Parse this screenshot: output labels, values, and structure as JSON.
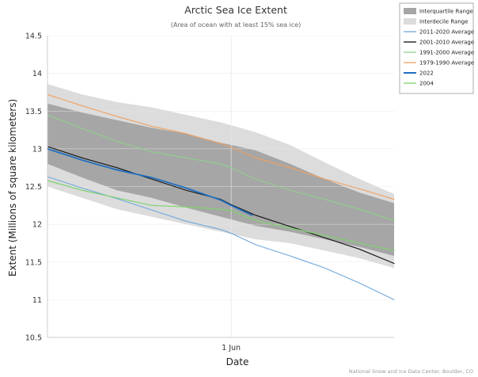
{
  "chart_data": {
    "type": "line",
    "title": "Arctic Sea Ice Extent",
    "subtitle": "(Area of ocean with at least 15% sea ice)",
    "xlabel": "Date",
    "ylabel": "Extent (Millions of square kilometers)",
    "credit": "National Snow and Ice Data Center, Boulder, CO",
    "ylim": [
      10.5,
      14.5
    ],
    "yticks": [
      "10.5",
      "11",
      "11.5",
      "12",
      "12.5",
      "13",
      "13.5",
      "14",
      "14.5"
    ],
    "x_tick_labels": [
      {
        "x": 0.53,
        "label": "1 Jun"
      }
    ],
    "grid": true,
    "legend_position": "top-right",
    "bands": [
      {
        "name": "Interdecile Range",
        "color": "#dcdcdc",
        "x": [
          0,
          0.1,
          0.2,
          0.3,
          0.4,
          0.5,
          0.6,
          0.7,
          0.8,
          0.9,
          1.0
        ],
        "lower": [
          12.5,
          12.35,
          12.2,
          12.1,
          12.0,
          11.9,
          11.8,
          11.75,
          11.65,
          11.55,
          11.42
        ],
        "upper": [
          13.86,
          13.72,
          13.62,
          13.55,
          13.45,
          13.35,
          13.22,
          13.05,
          12.82,
          12.6,
          12.4
        ]
      },
      {
        "name": "Interquartile Range",
        "color": "#a6a6a6",
        "x": [
          0,
          0.1,
          0.2,
          0.3,
          0.4,
          0.5,
          0.6,
          0.7,
          0.8,
          0.9,
          1.0
        ],
        "lower": [
          12.8,
          12.62,
          12.45,
          12.35,
          12.22,
          12.1,
          11.98,
          11.9,
          11.8,
          11.7,
          11.58
        ],
        "upper": [
          13.6,
          13.48,
          13.38,
          13.28,
          13.2,
          13.08,
          12.98,
          12.8,
          12.6,
          12.42,
          12.28
        ]
      }
    ],
    "series": [
      {
        "name": "2011-2020 Average",
        "color": "#6fa8dc",
        "width": 1.1,
        "x": [
          0,
          0.1,
          0.2,
          0.3,
          0.4,
          0.5,
          0.53,
          0.6,
          0.7,
          0.8,
          0.9,
          1.0
        ],
        "y": [
          12.63,
          12.48,
          12.34,
          12.19,
          12.04,
          11.93,
          11.88,
          11.73,
          11.58,
          11.42,
          11.22,
          11.0
        ]
      },
      {
        "name": "2001-2010 Average",
        "color": "#111111",
        "width": 1.1,
        "x": [
          0,
          0.1,
          0.2,
          0.3,
          0.4,
          0.5,
          0.53,
          0.6,
          0.7,
          0.8,
          0.9,
          1.0
        ],
        "y": [
          13.03,
          12.88,
          12.75,
          12.6,
          12.45,
          12.33,
          12.26,
          12.12,
          11.97,
          11.82,
          11.67,
          11.48
        ]
      },
      {
        "name": "1991-2000 Average",
        "color": "#8fd18a",
        "width": 1.1,
        "x": [
          0,
          0.1,
          0.2,
          0.3,
          0.4,
          0.5,
          0.53,
          0.6,
          0.7,
          0.8,
          0.9,
          1.0
        ],
        "y": [
          13.45,
          13.27,
          13.1,
          12.96,
          12.88,
          12.8,
          12.75,
          12.6,
          12.45,
          12.33,
          12.2,
          12.05
        ]
      },
      {
        "name": "1979-1990 Average",
        "color": "#f0a060",
        "width": 1.1,
        "x": [
          0,
          0.1,
          0.2,
          0.3,
          0.4,
          0.5,
          0.53,
          0.6,
          0.7,
          0.8,
          0.9,
          1.0
        ],
        "y": [
          13.72,
          13.57,
          13.43,
          13.3,
          13.2,
          13.07,
          13.02,
          12.88,
          12.75,
          12.6,
          12.47,
          12.33
        ]
      },
      {
        "name": "2022",
        "color": "#1f6fc1",
        "width": 1.8,
        "x": [
          0,
          0.1,
          0.2,
          0.3,
          0.4,
          0.5,
          0.53,
          0.59
        ],
        "y": [
          13.0,
          12.85,
          12.72,
          12.62,
          12.48,
          12.32,
          12.25,
          12.12
        ]
      },
      {
        "name": "2004",
        "color": "#7fd36e",
        "width": 1.2,
        "x": [
          0,
          0.1,
          0.2,
          0.3,
          0.4,
          0.5,
          0.53,
          0.6,
          0.7,
          0.8,
          0.9,
          1.0
        ],
        "y": [
          12.58,
          12.45,
          12.35,
          12.25,
          12.23,
          12.2,
          12.18,
          12.05,
          11.95,
          11.85,
          11.75,
          11.65
        ]
      }
    ],
    "legend": [
      {
        "label": "Interquartile Range",
        "kind": "box",
        "color": "#a6a6a6"
      },
      {
        "label": "Interdecile Range",
        "kind": "box",
        "color": "#dcdcdc"
      },
      {
        "label": "2011-2020 Average",
        "kind": "line",
        "color": "#6fa8dc"
      },
      {
        "label": "2001-2010 Average",
        "kind": "line",
        "color": "#111111"
      },
      {
        "label": "1991-2000 Average",
        "kind": "line",
        "color": "#8fd18a"
      },
      {
        "label": "1979-1990 Average",
        "kind": "line",
        "color": "#f0a060"
      },
      {
        "label": "2022",
        "kind": "line",
        "color": "#1f6fc1"
      },
      {
        "label": "2004",
        "kind": "line",
        "color": "#7fd36e"
      }
    ]
  }
}
